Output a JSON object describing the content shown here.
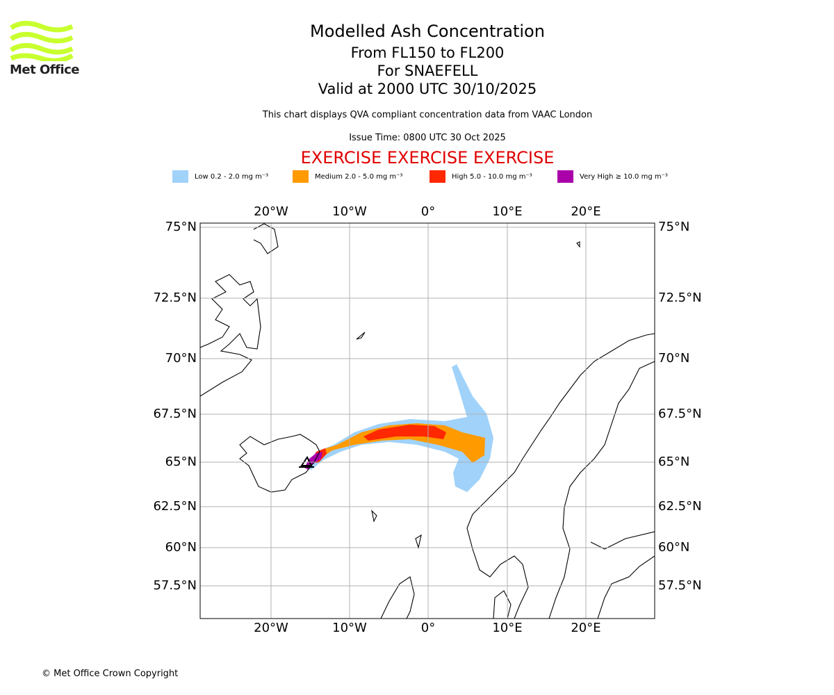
{
  "logo": {
    "text": "Met Office",
    "color": "#c8ff2e"
  },
  "title": {
    "line1": "Modelled Ash Concentration",
    "line2": "From FL150 to FL200",
    "line3": "For SNAEFELL",
    "line4": "Valid at 2000 UTC 30/10/2025"
  },
  "subtitle": "This chart displays QVA compliant concentration data from VAAC London",
  "issue_time": "Issue Time: 0800 UTC 30 Oct 2025",
  "exercise_banner": "EXERCISE EXERCISE EXERCISE",
  "legend": [
    {
      "label": "Low 0.2 - 2.0 mg m⁻³",
      "color": "#a0d2fa"
    },
    {
      "label": "Medium 2.0 - 5.0 mg m⁻³",
      "color": "#ff9a00"
    },
    {
      "label": "High 5.0 - 10.0 mg m⁻³",
      "color": "#ff2800"
    },
    {
      "label": "Very High ≥ 10.0 mg m⁻³",
      "color": "#aa00aa"
    }
  ],
  "map": {
    "lon_ticks": [
      "20°W",
      "10°W",
      "0°",
      "10°E",
      "20°E"
    ],
    "lat_ticks": [
      "75°N",
      "72.5°N",
      "70°N",
      "67.5°N",
      "65°N",
      "62.5°N",
      "60°N",
      "57.5°N"
    ],
    "gridlines": true,
    "volcano": "Snaefell"
  },
  "copyright": "© Met Office Crown Copyright"
}
